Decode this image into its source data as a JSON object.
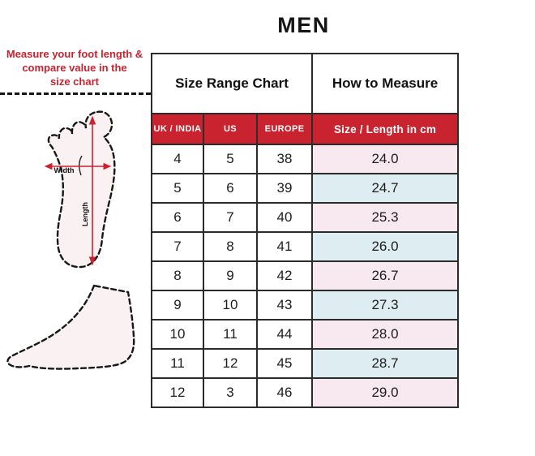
{
  "title": "MEN",
  "instruction": {
    "lines": [
      "Measure your foot length &",
      "compare value in the",
      "size chart"
    ]
  },
  "diagram": {
    "width_label": "Width",
    "length_label": "Length"
  },
  "colors": {
    "accent_red": "#c8232f",
    "row_pink": "#f8e9f0",
    "row_blue": "#ddedf1"
  },
  "table": {
    "group_headers": [
      "Size Range Chart",
      "How to Measure"
    ],
    "columns": [
      "UK / INDIA",
      "US",
      "EUROPE",
      "Size / Length in cm"
    ],
    "rows": [
      [
        "4",
        "5",
        "38",
        "24.0"
      ],
      [
        "5",
        "6",
        "39",
        "24.7"
      ],
      [
        "6",
        "7",
        "40",
        "25.3"
      ],
      [
        "7",
        "8",
        "41",
        "26.0"
      ],
      [
        "8",
        "9",
        "42",
        "26.7"
      ],
      [
        "9",
        "10",
        "43",
        "27.3"
      ],
      [
        "10",
        "11",
        "44",
        "28.0"
      ],
      [
        "11",
        "12",
        "45",
        "28.7"
      ],
      [
        "12",
        "3",
        "46",
        "29.0"
      ]
    ]
  }
}
